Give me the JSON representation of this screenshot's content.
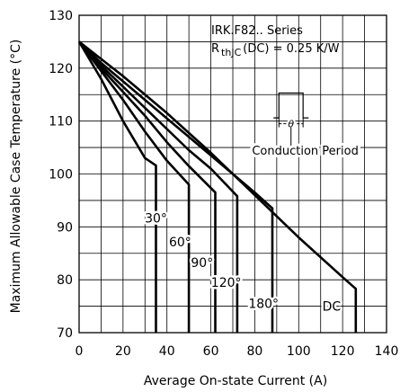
{
  "chart_data": {
    "type": "line",
    "title": "IRK.F82.. Series",
    "subtitle_prefix": "R",
    "subtitle_sub": "thJC",
    "subtitle_suffix": "(DC) = 0.25 K/W",
    "xlabel": "Average On-state Current (A)",
    "ylabel": "Maximum Allowable Case Temperature (°C)",
    "xlim": [
      0,
      140
    ],
    "ylim": [
      70,
      130
    ],
    "x_ticks": [
      0,
      20,
      40,
      60,
      80,
      100,
      120,
      140
    ],
    "y_ticks": [
      70,
      80,
      90,
      100,
      110,
      120,
      130
    ],
    "grid": true,
    "inset_labels": {
      "angle": "θ",
      "conduction": "Conduction Period"
    },
    "series": [
      {
        "name": "30°",
        "label_at": [
          35,
          91.7
        ],
        "x": [
          0,
          10,
          20,
          30,
          35,
          35
        ],
        "y": [
          125,
          118,
          110,
          103,
          101.6,
          70
        ]
      },
      {
        "name": "60°",
        "label_at": [
          46,
          87.2
        ],
        "x": [
          0,
          10,
          20,
          30,
          40,
          50,
          50
        ],
        "y": [
          125,
          119.5,
          114,
          108,
          102.5,
          98,
          70
        ]
      },
      {
        "name": "90°",
        "label_at": [
          56,
          83.3
        ],
        "x": [
          0,
          10,
          20,
          30,
          40,
          50,
          62,
          62
        ],
        "y": [
          125,
          120,
          115.5,
          111,
          106,
          101.5,
          96.5,
          70
        ]
      },
      {
        "name": "120°",
        "label_at": [
          67,
          79.5
        ],
        "x": [
          0,
          10,
          20,
          30,
          40,
          50,
          60,
          72,
          72
        ],
        "y": [
          125,
          120.5,
          116.5,
          112.5,
          108.5,
          104.5,
          101,
          95.8,
          70
        ]
      },
      {
        "name": "180°",
        "label_at": [
          84,
          75.5
        ],
        "x": [
          0,
          10,
          20,
          30,
          40,
          50,
          60,
          70,
          80,
          88,
          88
        ],
        "y": [
          125,
          121,
          117.5,
          114,
          110.5,
          107,
          103.5,
          100,
          96.5,
          93.5,
          70
        ]
      },
      {
        "name": "DC",
        "label_at": [
          115,
          75
        ],
        "x": [
          0,
          20,
          40,
          60,
          80,
          100,
          120,
          126,
          126
        ],
        "y": [
          125,
          118.5,
          111.5,
          104,
          96,
          88,
          80.5,
          78.3,
          70
        ]
      }
    ]
  }
}
